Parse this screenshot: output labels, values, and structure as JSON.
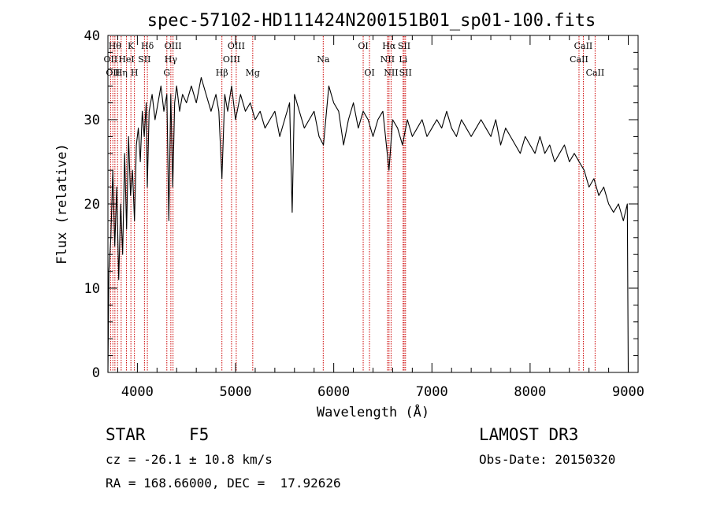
{
  "chart_data": {
    "type": "line",
    "title": "spec-57102-HD111424N200151B01_sp01-100.fits",
    "xlabel": "Wavelength (Å)",
    "ylabel": "Flux (relative)",
    "xlim": [
      3700,
      9100
    ],
    "ylim": [
      0,
      40
    ],
    "xticks": [
      4000,
      5000,
      6000,
      7000,
      8000,
      9000
    ],
    "yticks": [
      0,
      10,
      20,
      30,
      40
    ],
    "grid": false,
    "series": [
      {
        "name": "flux",
        "x": [
          3700,
          3710,
          3730,
          3750,
          3770,
          3790,
          3810,
          3830,
          3850,
          3870,
          3890,
          3910,
          3930,
          3950,
          3970,
          3990,
          4010,
          4030,
          4050,
          4070,
          4090,
          4101,
          4120,
          4150,
          4180,
          4210,
          4240,
          4270,
          4300,
          4320,
          4340,
          4360,
          4380,
          4400,
          4430,
          4460,
          4500,
          4550,
          4600,
          4650,
          4700,
          4750,
          4800,
          4830,
          4861,
          4890,
          4920,
          4960,
          5000,
          5050,
          5100,
          5150,
          5200,
          5250,
          5300,
          5350,
          5400,
          5450,
          5500,
          5550,
          5577,
          5600,
          5650,
          5700,
          5750,
          5800,
          5850,
          5895,
          5950,
          6000,
          6050,
          6100,
          6150,
          6200,
          6250,
          6300,
          6350,
          6400,
          6450,
          6500,
          6563,
          6600,
          6650,
          6700,
          6750,
          6800,
          6850,
          6900,
          6950,
          7000,
          7050,
          7100,
          7150,
          7200,
          7250,
          7300,
          7350,
          7400,
          7450,
          7500,
          7550,
          7600,
          7650,
          7700,
          7750,
          7800,
          7850,
          7900,
          7950,
          8000,
          8050,
          8100,
          8150,
          8200,
          8250,
          8300,
          8350,
          8400,
          8450,
          8500,
          8550,
          8600,
          8650,
          8700,
          8750,
          8800,
          8850,
          8900,
          8950,
          8990,
          9000
        ],
        "values": [
          0,
          12,
          16,
          24,
          15,
          22,
          11,
          20,
          14,
          26,
          17,
          28,
          21,
          24,
          18,
          27,
          29,
          25,
          31,
          28,
          32,
          22,
          31,
          33,
          30,
          32,
          34,
          31,
          33,
          18,
          33,
          22,
          32,
          34,
          31,
          33,
          32,
          34,
          32,
          35,
          33,
          31,
          33,
          31,
          23,
          33,
          31,
          34,
          30,
          33,
          31,
          32,
          30,
          31,
          29,
          30,
          31,
          28,
          30,
          32,
          19,
          33,
          31,
          29,
          30,
          31,
          28,
          27,
          34,
          32,
          31,
          27,
          30,
          32,
          29,
          31,
          30,
          28,
          30,
          31,
          24,
          30,
          29,
          27,
          30,
          28,
          29,
          30,
          28,
          29,
          30,
          29,
          31,
          29,
          28,
          30,
          29,
          28,
          29,
          30,
          29,
          28,
          30,
          27,
          29,
          28,
          27,
          26,
          28,
          27,
          26,
          28,
          26,
          27,
          25,
          26,
          27,
          25,
          26,
          25,
          24,
          22,
          23,
          21,
          22,
          20,
          19,
          20,
          18,
          20,
          0
        ]
      }
    ],
    "spectral_lines": [
      {
        "wavelength": 3727,
        "labels": [
          "OII"
        ],
        "row": 1
      },
      {
        "wavelength": 3750,
        "labels": [
          "OII"
        ],
        "row": 2
      },
      {
        "wavelength": 3771,
        "labels": [
          "Hθ"
        ],
        "row": 0
      },
      {
        "wavelength": 3798,
        "labels": [],
        "row": 0
      },
      {
        "wavelength": 3835,
        "labels": [
          "Hη"
        ],
        "row": 2
      },
      {
        "wavelength": 3889,
        "labels": [
          "HeI"
        ],
        "row": 1
      },
      {
        "wavelength": 3934,
        "labels": [
          "K"
        ],
        "row": 0
      },
      {
        "wavelength": 3970,
        "labels": [
          "H"
        ],
        "row": 2
      },
      {
        "wavelength": 4072,
        "labels": [
          "SII"
        ],
        "row": 1
      },
      {
        "wavelength": 4102,
        "labels": [
          "Hδ"
        ],
        "row": 0
      },
      {
        "wavelength": 4300,
        "labels": [
          "G"
        ],
        "row": 2
      },
      {
        "wavelength": 4341,
        "labels": [
          "Hγ"
        ],
        "row": 1
      },
      {
        "wavelength": 4363,
        "labels": [
          "OIII"
        ],
        "row": 0
      },
      {
        "wavelength": 4861,
        "labels": [
          "Hβ"
        ],
        "row": 2
      },
      {
        "wavelength": 4959,
        "labels": [
          "OIII"
        ],
        "row": 1
      },
      {
        "wavelength": 5007,
        "labels": [
          "OIII"
        ],
        "row": 0
      },
      {
        "wavelength": 5175,
        "labels": [
          "Mg"
        ],
        "row": 2
      },
      {
        "wavelength": 5893,
        "labels": [
          "Na"
        ],
        "row": 1
      },
      {
        "wavelength": 6300,
        "labels": [
          "OI"
        ],
        "row": 0
      },
      {
        "wavelength": 6364,
        "labels": [
          "OI"
        ],
        "row": 2
      },
      {
        "wavelength": 6548,
        "labels": [
          "NII"
        ],
        "row": 1
      },
      {
        "wavelength": 6563,
        "labels": [
          "Hα"
        ],
        "row": 0
      },
      {
        "wavelength": 6584,
        "labels": [
          "NII"
        ],
        "row": 2
      },
      {
        "wavelength": 6707,
        "labels": [
          "Li"
        ],
        "row": 1
      },
      {
        "wavelength": 6717,
        "labels": [
          "SII"
        ],
        "row": 0
      },
      {
        "wavelength": 6731,
        "labels": [
          "SII"
        ],
        "row": 2
      },
      {
        "wavelength": 8498,
        "labels": [
          "CaII"
        ],
        "row": 1
      },
      {
        "wavelength": 8542,
        "labels": [
          "CaII"
        ],
        "row": 0
      },
      {
        "wavelength": 8662,
        "labels": [
          "CaII"
        ],
        "row": 2
      }
    ]
  },
  "info": {
    "object_class": "STAR",
    "subclass": "F5",
    "survey": "LAMOST DR3",
    "redshift": "cz = -26.1 ± 10.8 km/s",
    "obs_date": "Obs-Date: 20150320",
    "coords": "RA = 168.66000, DEC =  17.92626"
  },
  "colors": {
    "line": "#000000",
    "marker": "#cc0000",
    "background": "#ffffff"
  }
}
